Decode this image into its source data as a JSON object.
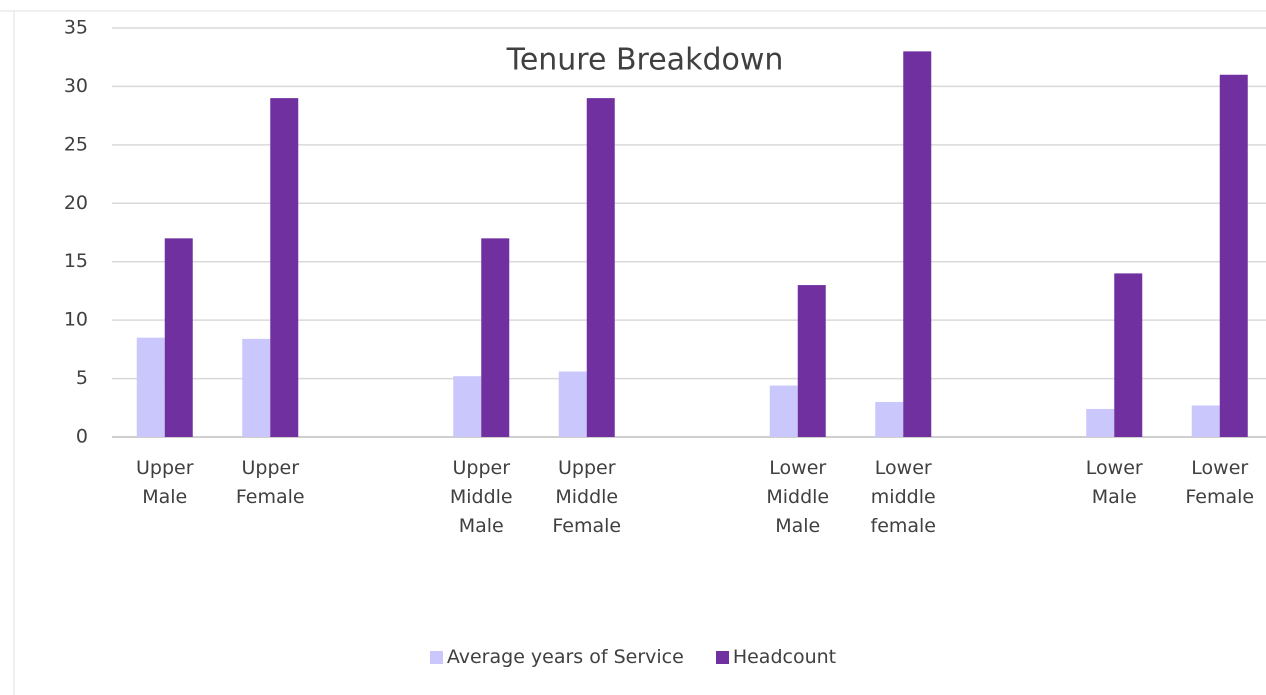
{
  "chart_data": {
    "type": "bar",
    "title": "Tenure Breakdown",
    "categories": [
      "Upper Male",
      "Upper Female",
      null,
      "Upper Middle Male",
      "Upper Middle Female",
      null,
      "Lower Middle Male",
      "Lower middle female",
      null,
      "Lower Male",
      "Lower Female"
    ],
    "series": [
      {
        "name": "Average years of Service",
        "color": "#c9c7fb",
        "values": [
          8.5,
          8.4,
          null,
          5.2,
          5.6,
          null,
          4.4,
          3.0,
          null,
          2.4,
          2.7
        ]
      },
      {
        "name": "Headcount",
        "color": "#7030a0",
        "values": [
          17,
          29,
          null,
          17,
          29,
          null,
          13,
          33,
          null,
          14,
          31
        ]
      }
    ],
    "ylim": [
      0,
      35
    ],
    "yticks": [
      0,
      5,
      10,
      15,
      20,
      25,
      30,
      35
    ],
    "grid": true,
    "legend": "bottom"
  }
}
